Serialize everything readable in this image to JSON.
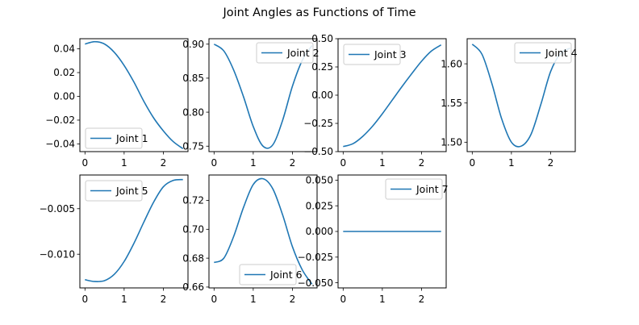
{
  "figure": {
    "title": "Joint Angles as Functions of Time",
    "line_color": "#1f77b4"
  },
  "chart_data": [
    {
      "type": "line",
      "series": [
        {
          "name": "Joint 1",
          "x": [
            0,
            0.25,
            0.5,
            0.75,
            1.0,
            1.25,
            1.5,
            1.75,
            2.0,
            2.25,
            2.5
          ],
          "values": [
            0.044,
            0.046,
            0.044,
            0.037,
            0.026,
            0.012,
            -0.004,
            -0.018,
            -0.029,
            -0.038,
            -0.044
          ]
        }
      ],
      "xticks": [
        "0",
        "1",
        "2"
      ],
      "xlim": [
        -0.13,
        2.63
      ],
      "yticks": [
        {
          "v": 0.04,
          "label": "0.04"
        },
        {
          "v": 0.02,
          "label": "0.02"
        },
        {
          "v": 0.0,
          "label": "0.00"
        },
        {
          "v": -0.02,
          "label": "−0.02"
        },
        {
          "v": -0.04,
          "label": "−0.04"
        }
      ],
      "ylim": [
        -0.0465,
        0.0485
      ],
      "legend": "lower-left"
    },
    {
      "type": "line",
      "series": [
        {
          "name": "Joint 2",
          "x": [
            0,
            0.25,
            0.5,
            0.75,
            1.0,
            1.25,
            1.5,
            1.75,
            2.0,
            2.25,
            2.5
          ],
          "values": [
            0.9,
            0.89,
            0.862,
            0.823,
            0.779,
            0.75,
            0.752,
            0.788,
            0.838,
            0.876,
            0.898
          ]
        }
      ],
      "xticks": [
        "0",
        "1",
        "2"
      ],
      "xlim": [
        -0.13,
        2.63
      ],
      "yticks": [
        {
          "v": 0.9,
          "label": "0.90"
        },
        {
          "v": 0.85,
          "label": "0.85"
        },
        {
          "v": 0.8,
          "label": "0.80"
        },
        {
          "v": 0.75,
          "label": "0.75"
        }
      ],
      "ylim": [
        0.742,
        0.908
      ],
      "legend": "upper-right"
    },
    {
      "type": "line",
      "series": [
        {
          "name": "Joint 3",
          "x": [
            0,
            0.25,
            0.5,
            0.75,
            1.0,
            1.25,
            1.5,
            1.75,
            2.0,
            2.25,
            2.5
          ],
          "values": [
            -0.455,
            -0.43,
            -0.365,
            -0.275,
            -0.165,
            -0.045,
            0.075,
            0.19,
            0.3,
            0.39,
            0.445
          ]
        }
      ],
      "xticks": [
        "0",
        "1",
        "2"
      ],
      "xlim": [
        -0.13,
        2.63
      ],
      "yticks": [
        {
          "v": 0.5,
          "label": "0.50"
        },
        {
          "v": 0.25,
          "label": "0.25"
        },
        {
          "v": 0.0,
          "label": "0.00"
        },
        {
          "v": -0.25,
          "label": "−0.25"
        },
        {
          "v": -0.5,
          "label": "−0.50"
        }
      ],
      "ylim": [
        -0.5,
        0.5
      ],
      "legend": "upper-left"
    },
    {
      "type": "line",
      "series": [
        {
          "name": "Joint 4",
          "x": [
            0,
            0.25,
            0.5,
            0.75,
            1.0,
            1.25,
            1.5,
            1.75,
            2.0,
            2.25,
            2.5
          ],
          "values": [
            1.625,
            1.612,
            1.575,
            1.53,
            1.5,
            1.495,
            1.51,
            1.548,
            1.59,
            1.613,
            1.62
          ]
        }
      ],
      "xticks": [
        "0",
        "1",
        "2"
      ],
      "xlim": [
        -0.13,
        2.63
      ],
      "yticks": [
        {
          "v": 1.6,
          "label": "1.60"
        },
        {
          "v": 1.55,
          "label": "1.55"
        },
        {
          "v": 1.5,
          "label": "1.50"
        }
      ],
      "ylim": [
        1.488,
        1.632
      ],
      "legend": "upper-right"
    },
    {
      "type": "line",
      "series": [
        {
          "name": "Joint 5",
          "x": [
            0,
            0.25,
            0.5,
            0.75,
            1.0,
            1.25,
            1.5,
            1.75,
            2.0,
            2.25,
            2.5
          ],
          "values": [
            -0.0128,
            -0.013,
            -0.0129,
            -0.0122,
            -0.0108,
            -0.0088,
            -0.0065,
            -0.0043,
            -0.0026,
            -0.0019,
            -0.0018
          ]
        }
      ],
      "xticks": [
        "0",
        "1",
        "2"
      ],
      "xlim": [
        -0.13,
        2.63
      ],
      "yticks": [
        {
          "v": -0.005,
          "label": "−0.005"
        },
        {
          "v": -0.01,
          "label": "−0.010"
        }
      ],
      "ylim": [
        -0.0137,
        -0.0013
      ],
      "legend": "upper-left"
    },
    {
      "type": "line",
      "series": [
        {
          "name": "Joint 6",
          "x": [
            0,
            0.25,
            0.5,
            0.75,
            1.0,
            1.25,
            1.5,
            1.75,
            2.0,
            2.25,
            2.5
          ],
          "values": [
            0.677,
            0.68,
            0.695,
            0.715,
            0.731,
            0.735,
            0.728,
            0.71,
            0.688,
            0.672,
            0.662
          ]
        }
      ],
      "xticks": [
        "0",
        "1",
        "2"
      ],
      "xlim": [
        -0.13,
        2.63
      ],
      "yticks": [
        {
          "v": 0.72,
          "label": "0.72"
        },
        {
          "v": 0.7,
          "label": "0.70"
        },
        {
          "v": 0.68,
          "label": "0.68"
        },
        {
          "v": 0.66,
          "label": "0.66"
        }
      ],
      "ylim": [
        0.6594,
        0.7376
      ],
      "legend": "lower-center"
    },
    {
      "type": "line",
      "series": [
        {
          "name": "Joint 7",
          "x": [
            0,
            0.25,
            0.5,
            0.75,
            1.0,
            1.25,
            1.5,
            1.75,
            2.0,
            2.25,
            2.5
          ],
          "values": [
            0,
            0,
            0,
            0,
            0,
            0,
            0,
            0,
            0,
            0,
            0
          ]
        }
      ],
      "xticks": [
        "0",
        "1",
        "2"
      ],
      "xlim": [
        -0.13,
        2.63
      ],
      "yticks": [
        {
          "v": 0.05,
          "label": "0.050"
        },
        {
          "v": 0.025,
          "label": "0.025"
        },
        {
          "v": 0.0,
          "label": "0.000"
        },
        {
          "v": -0.025,
          "label": "−0.025"
        },
        {
          "v": -0.05,
          "label": "−0.050"
        }
      ],
      "ylim": [
        -0.055,
        0.055
      ],
      "legend": "upper-right"
    }
  ]
}
